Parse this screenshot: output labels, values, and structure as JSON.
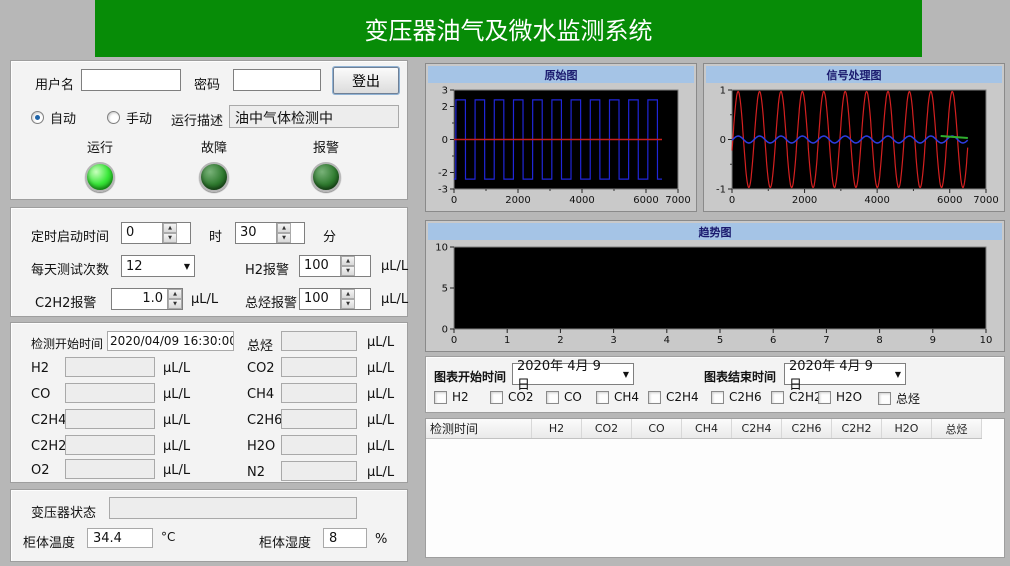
{
  "title": "变压器油气及微水监测系统",
  "login": {
    "username_label": "用户名",
    "username_value": "",
    "password_label": "密码",
    "password_value": "",
    "logout_button": "登出",
    "mode_auto": "自动",
    "mode_manual": "手动",
    "selected_mode": "自动",
    "run_desc_label": "运行描述",
    "run_desc_value": "油中气体检测中",
    "leds": [
      {
        "label": "运行",
        "state": "on"
      },
      {
        "label": "故障",
        "state": "off"
      },
      {
        "label": "报警",
        "state": "off"
      }
    ]
  },
  "timer": {
    "start_label": "定时启动时间",
    "hour_value": "0",
    "hour_unit": "时",
    "minute_value": "30",
    "minute_unit": "分",
    "tests_label": "每天测试次数",
    "tests_value": "12",
    "h2_alarm_label": "H2报警",
    "h2_alarm_value": "100",
    "c2h2_alarm_label": "C2H2报警",
    "c2h2_alarm_value": "1.0",
    "hydro_alarm_label": "总烃报警",
    "hydro_alarm_value": "100",
    "unit": "μL/L"
  },
  "readings": {
    "start_time_label": "检测开始时间",
    "start_time_value": "2020/04/09 16:30:00",
    "unit": "μL/L",
    "left": [
      {
        "label": "H2",
        "value": ""
      },
      {
        "label": "CO",
        "value": ""
      },
      {
        "label": "C2H4",
        "value": ""
      },
      {
        "label": "C2H2",
        "value": ""
      },
      {
        "label": "O2",
        "value": ""
      }
    ],
    "right": [
      {
        "label": "总烃",
        "value": ""
      },
      {
        "label": "CO2",
        "value": ""
      },
      {
        "label": "CH4",
        "value": ""
      },
      {
        "label": "C2H6",
        "value": ""
      },
      {
        "label": "H2O",
        "value": ""
      },
      {
        "label": "N2",
        "value": ""
      }
    ]
  },
  "status": {
    "transformer_label": "变压器状态",
    "transformer_value": "",
    "temp_label": "柜体温度",
    "temp_value": "34.4",
    "temp_unit": "°C",
    "humidity_label": "柜体湿度",
    "humidity_value": "8",
    "humidity_unit": "%"
  },
  "chart_controls": {
    "start_label": "图表开始时间",
    "start_value": "2020年 4月 9日",
    "end_label": "图表结束时间",
    "end_value": "2020年 4月 9日",
    "gas_checkboxes": [
      "H2",
      "CO2",
      "CO",
      "CH4",
      "C2H4",
      "C2H6",
      "C2H2",
      "H2O",
      "总烃"
    ],
    "all_checked": false
  },
  "table": {
    "headers": [
      "检测时间",
      "H2",
      "CO2",
      "CO",
      "CH4",
      "C2H4",
      "C2H6",
      "C2H2",
      "H2O",
      "总烃"
    ],
    "rows": []
  },
  "chart_data": [
    {
      "type": "line",
      "title": "原始图",
      "xlim": [
        0,
        7000
      ],
      "ylim": [
        -3,
        3
      ],
      "x_ticks": [
        0,
        2000,
        4000,
        6000,
        7000
      ],
      "x_minor": [
        1000,
        3000,
        5000
      ],
      "y_ticks": [
        3,
        2,
        0,
        -2,
        -3
      ],
      "y_minor": [
        1,
        -1
      ],
      "plot_bg": "#000000",
      "series": [
        {
          "name": "raw-square-wave",
          "shape": "square",
          "color": "#2026d8",
          "width": 1.2,
          "amplitude": 2.4,
          "period": 600,
          "x_start": 0,
          "x_end": 6500
        },
        {
          "name": "zero-line",
          "shape": "segment",
          "color": "#c81e1e",
          "width": 1.6,
          "y1": 0,
          "y2": 0,
          "x_start": 0,
          "x_end": 6500
        }
      ]
    },
    {
      "type": "line",
      "title": "信号处理图",
      "xlim": [
        0,
        7000
      ],
      "ylim": [
        -1,
        1
      ],
      "x_ticks": [
        0,
        2000,
        4000,
        6000,
        7000
      ],
      "x_minor": [
        1000,
        3000,
        5000
      ],
      "y_ticks": [
        1,
        0,
        -1
      ],
      "y_minor": [
        0.5,
        -0.5
      ],
      "plot_bg": "#000000",
      "series": [
        {
          "name": "processed-sine-wave",
          "shape": "sine",
          "color": "#d42020",
          "width": 1.2,
          "amplitude": 0.97,
          "period": 590,
          "phase": 22,
          "x_start": 0,
          "x_end": 6500
        },
        {
          "name": "filtered-wave",
          "shape": "sine",
          "color": "#2c3ce0",
          "width": 1.5,
          "amplitude": 0.07,
          "period": 590,
          "phase": 22,
          "x_start": 0,
          "x_end": 6500
        },
        {
          "name": "trend-segment",
          "shape": "segment",
          "color": "#2fae2f",
          "width": 2,
          "y1": 0.07,
          "y2": 0.03,
          "x_start": 5750,
          "x_end": 6500
        }
      ]
    },
    {
      "type": "line",
      "title": "趋势图",
      "xlim": [
        0,
        10
      ],
      "ylim": [
        0,
        10
      ],
      "x_ticks": [
        0,
        1,
        2,
        3,
        4,
        5,
        6,
        7,
        8,
        9,
        10
      ],
      "x_minor": [],
      "y_ticks": [
        10,
        5,
        0
      ],
      "y_minor": [],
      "plot_bg": "#000000",
      "series": []
    }
  ]
}
